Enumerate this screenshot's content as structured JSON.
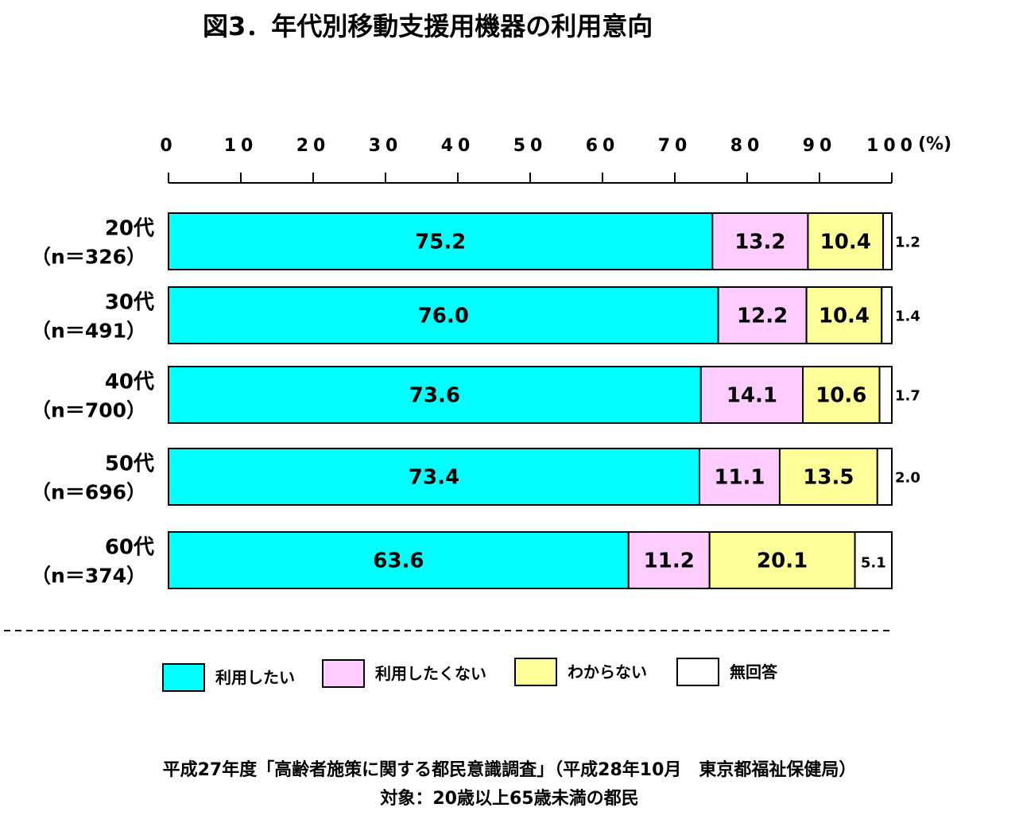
{
  "title": "図3．年代別移動支援用機器の利用意向",
  "axis": {
    "ticks": [
      "0",
      "10",
      "20",
      "30",
      "40",
      "50",
      "60",
      "70",
      "80",
      "90",
      "100"
    ],
    "unit": "(%)"
  },
  "legend": [
    "利用したい",
    "利用したくない",
    "わからない",
    "無回答"
  ],
  "colors": {
    "use": "#00FFFF",
    "not_use": "#FFCCFF",
    "unknown": "#FFFF99",
    "no_answer": "#FFFFFF"
  },
  "source": {
    "line1": "平成27年度「高齢者施策に関する都民意識調査」（平成28年10月　東京都福祉保健局）",
    "line2": "対象：20歳以上65歳未満の都民"
  },
  "chart_data": {
    "type": "bar",
    "orientation": "horizontal",
    "stacked": true,
    "xlim": [
      0,
      100
    ],
    "categories": [
      {
        "age": "20代",
        "n": "（n＝326）"
      },
      {
        "age": "30代",
        "n": "（n＝491）"
      },
      {
        "age": "40代",
        "n": "（n＝700）"
      },
      {
        "age": "50代",
        "n": "（n＝696）"
      },
      {
        "age": "60代",
        "n": "（n＝374）"
      }
    ],
    "series": [
      {
        "name": "利用したい",
        "values": [
          75.2,
          76.0,
          73.6,
          73.4,
          63.6
        ],
        "labels": [
          "75.2",
          "76.0",
          "73.6",
          "73.4",
          "63.6"
        ]
      },
      {
        "name": "利用したくない",
        "values": [
          13.2,
          12.2,
          14.1,
          11.1,
          11.2
        ],
        "labels": [
          "13.2",
          "12.2",
          "14.1",
          "11.1",
          "11.2"
        ]
      },
      {
        "name": "わからない",
        "values": [
          10.4,
          10.4,
          10.6,
          13.5,
          20.1
        ],
        "labels": [
          "10.4",
          "10.4",
          "10.6",
          "13.5",
          "20.1"
        ]
      },
      {
        "name": "無回答",
        "values": [
          1.2,
          1.4,
          1.7,
          2.0,
          5.1
        ],
        "labels": [
          "1.2",
          "1.4",
          "1.7",
          "2.0",
          "5.1"
        ]
      }
    ],
    "legend_position": "bottom"
  }
}
